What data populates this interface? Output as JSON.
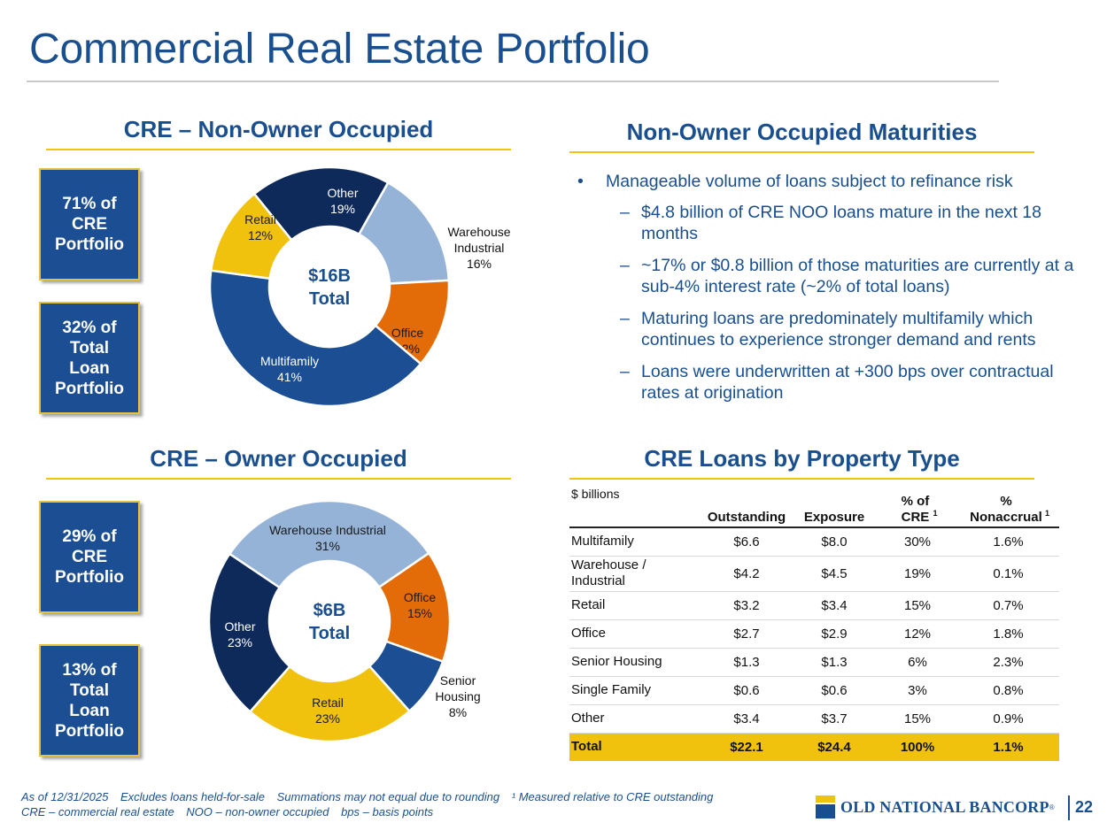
{
  "title": "Commercial Real Estate Portfolio",
  "noo": {
    "heading": "CRE – Non-Owner Occupied",
    "box1": "71% of CRE Portfolio",
    "box2": "32% of Total Loan Portfolio",
    "center_line1": "$16B",
    "center_line2": "Total"
  },
  "oo": {
    "heading": "CRE – Owner Occupied",
    "box1": "29% of CRE Portfolio",
    "box2": "13% of Total Loan Portfolio",
    "center_line1": "$6B",
    "center_line2": "Total"
  },
  "maturities": {
    "heading": "Non-Owner Occupied Maturities",
    "bullet": "Manageable volume of loans subject to refinance risk",
    "sub_bullets": [
      "$4.8 billion of CRE NOO loans mature in the next 18 months",
      "~17% or $0.8 billion of those maturities are currently at a sub-4% interest rate (~2% of total loans)",
      "Maturing loans are predominately multifamily which continues to experience stronger demand and rents",
      "Loans were underwritten at +300 bps over contractual rates at origination"
    ]
  },
  "table": {
    "heading": "CRE Loans by Property Type",
    "units": "$ billions",
    "columns": [
      "Outstanding",
      "Exposure",
      "% of CRE",
      "% Nonaccrual"
    ],
    "footnote_mark": "1",
    "rows": [
      {
        "type": "Multifamily",
        "outstanding": "$6.6",
        "exposure": "$8.0",
        "pct_cre": "30%",
        "nonaccrual": "1.6%"
      },
      {
        "type": "Warehouse / Industrial",
        "outstanding": "$4.2",
        "exposure": "$4.5",
        "pct_cre": "19%",
        "nonaccrual": "0.1%"
      },
      {
        "type": "Retail",
        "outstanding": "$3.2",
        "exposure": "$3.4",
        "pct_cre": "15%",
        "nonaccrual": "0.7%"
      },
      {
        "type": "Office",
        "outstanding": "$2.7",
        "exposure": "$2.9",
        "pct_cre": "12%",
        "nonaccrual": "1.8%"
      },
      {
        "type": "Senior Housing",
        "outstanding": "$1.3",
        "exposure": "$1.3",
        "pct_cre": "6%",
        "nonaccrual": "2.3%"
      },
      {
        "type": "Single Family",
        "outstanding": "$0.6",
        "exposure": "$0.6",
        "pct_cre": "3%",
        "nonaccrual": "0.8%"
      },
      {
        "type": "Other",
        "outstanding": "$3.4",
        "exposure": "$3.7",
        "pct_cre": "15%",
        "nonaccrual": "0.9%"
      }
    ],
    "total": {
      "type": "Total",
      "outstanding": "$22.1",
      "exposure": "$24.4",
      "pct_cre": "100%",
      "nonaccrual": "1.1%"
    }
  },
  "chart_data": [
    {
      "type": "pie",
      "subtype": "donut",
      "title": "CRE – Non-Owner Occupied",
      "center_label": "$16B Total",
      "categories": [
        "Other",
        "Warehouse Industrial",
        "Office",
        "Multifamily",
        "Retail"
      ],
      "values": [
        19,
        16,
        12,
        41,
        12
      ],
      "labels": [
        "Other\n19%",
        "Warehouse\nIndustrial\n16%",
        "Office\n12%",
        "Multifamily\n41%",
        "Retail\n12%"
      ],
      "colors": [
        "#0e2a5a",
        "#95b3d7",
        "#e36c09",
        "#1b4e93",
        "#f0c20e"
      ]
    },
    {
      "type": "pie",
      "subtype": "donut",
      "title": "CRE – Owner Occupied",
      "center_label": "$6B Total",
      "categories": [
        "Warehouse Industrial",
        "Office",
        "Senior Housing",
        "Retail",
        "Other"
      ],
      "values": [
        31,
        15,
        8,
        23,
        23
      ],
      "labels": [
        "Warehouse Industrial\n31%",
        "Office\n15%",
        "Senior\nHousing\n8%",
        "Retail\n23%",
        "Other\n23%"
      ],
      "colors": [
        "#95b3d7",
        "#e36c09",
        "#1b4e93",
        "#f0c20e",
        "#0e2a5a"
      ]
    }
  ],
  "footnotes": {
    "line1": [
      "As of 12/31/2025",
      "Excludes loans held-for-sale",
      "Summations may not equal due to rounding",
      "¹ Measured relative to CRE outstanding"
    ],
    "line2": [
      "CRE – commercial real estate",
      "NOO – non-owner occupied",
      "bps – basis points"
    ]
  },
  "logo_text": "OLD NATIONAL BANCORP",
  "logo_mark": "®",
  "page_number": "22"
}
